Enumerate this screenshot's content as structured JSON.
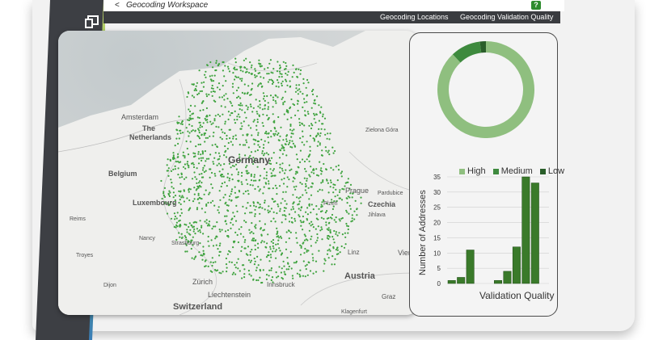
{
  "header": {
    "back_glyph": "<",
    "title": "Geocoding Workspace",
    "help_label": "?"
  },
  "tabs": [
    {
      "label": "Geocoding Locations"
    },
    {
      "label": "Geocoding Validation Quality"
    }
  ],
  "sidebar": {
    "items": [
      {
        "icon": "copy-window-icon"
      },
      {
        "icon": "home-icon"
      },
      {
        "icon": "menu-icon"
      },
      {
        "icon": "gear-icon"
      }
    ]
  },
  "map": {
    "labels": {
      "amsterdam": "Amsterdam",
      "the": "The",
      "netherlands": "Netherlands",
      "belgium": "Belgium",
      "luxembourg": "Luxembourg",
      "germany": "Germany",
      "prague": "Prague",
      "czechia": "Czechia",
      "pardubice": "Pardubice",
      "jihlava": "Jihlava",
      "plzen": "Plzeň",
      "zurich": "Zürich",
      "liechtenstein": "Liechtenstein",
      "innsbruck": "Innsbruck",
      "austria": "Austria",
      "switzerland": "Switzerland",
      "linz": "Linz",
      "vienna": "Vienn",
      "graz": "Graz",
      "klagenfurt": "Klagenfurt",
      "nancy": "Nancy",
      "reims": "Reims",
      "troyes": "Troyes",
      "dijon": "Dijon",
      "strasbourg": "Strasbourg",
      "zielona": "Zielona Góra"
    },
    "colors": {
      "point": "#3fa33f",
      "land": "#efefed"
    }
  },
  "chart_data": [
    {
      "type": "pie",
      "style": "donut",
      "labels": [
        "High",
        "Medium",
        "Low"
      ],
      "values": [
        88,
        10,
        2
      ],
      "colors": [
        "#8fbf7f",
        "#3e8a3e",
        "#2a5e2a"
      ]
    },
    {
      "type": "bar",
      "x": [
        1,
        2,
        3,
        4,
        5,
        6,
        7,
        8,
        9,
        10,
        11
      ],
      "values": [
        1,
        2,
        11,
        0,
        0,
        1,
        4,
        12,
        35,
        33,
        0
      ],
      "xlabel": "Validation Quality",
      "ylabel": "Number of Addresses",
      "yticks": [
        0,
        5,
        10,
        15,
        20,
        25,
        30,
        35
      ],
      "ylim": [
        0,
        35
      ],
      "color": "#3a7a2a"
    }
  ]
}
